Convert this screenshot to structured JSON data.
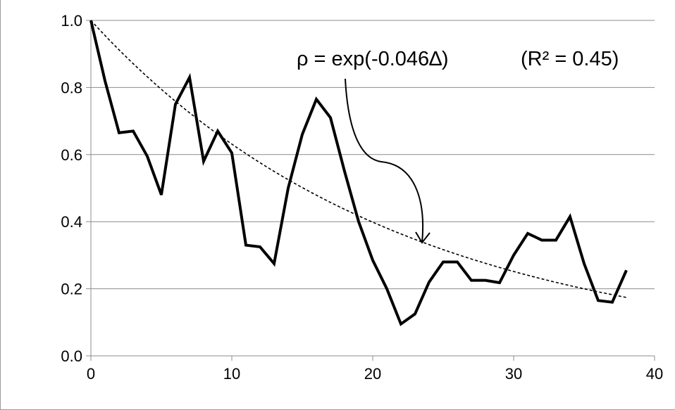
{
  "chart_data": {
    "type": "line",
    "title": "",
    "xlabel": "",
    "ylabel": "",
    "xlim": [
      0,
      40
    ],
    "ylim": [
      0.0,
      1.0
    ],
    "x_ticks": [
      "0",
      "10",
      "20",
      "30",
      "40"
    ],
    "y_ticks": [
      "0.0",
      "0.2",
      "0.4",
      "0.6",
      "0.8",
      "1.0"
    ],
    "grid": "horizontal",
    "legend": "none",
    "series": [
      {
        "style": "solid-thick",
        "color": "#000000",
        "x": [
          0,
          1,
          2,
          3,
          4,
          5,
          6,
          7,
          8,
          9,
          10,
          11,
          12,
          13,
          14,
          15,
          16,
          17,
          18,
          19,
          20,
          21,
          22,
          23,
          24,
          25,
          26,
          27,
          28,
          29,
          30,
          31,
          32,
          33,
          34,
          35,
          36,
          37,
          38
        ],
        "y": [
          1.0,
          0.82,
          0.665,
          0.67,
          0.595,
          0.48,
          0.75,
          0.83,
          0.58,
          0.67,
          0.605,
          0.33,
          0.325,
          0.275,
          0.5,
          0.66,
          0.765,
          0.71,
          0.55,
          0.4,
          0.285,
          0.2,
          0.095,
          0.125,
          0.22,
          0.28,
          0.28,
          0.225,
          0.225,
          0.218,
          0.3,
          0.365,
          0.345,
          0.345,
          0.415,
          0.275,
          0.165,
          0.16,
          0.255
        ]
      },
      {
        "style": "dashed-fit",
        "color": "#000000",
        "function": "exp(-0.046x)",
        "coef": -0.046,
        "x_range": [
          0,
          38
        ]
      }
    ],
    "annotations": {
      "equation": "ρ = exp(-0.046∆)",
      "r_squared": "(R² = 0.45)"
    }
  }
}
